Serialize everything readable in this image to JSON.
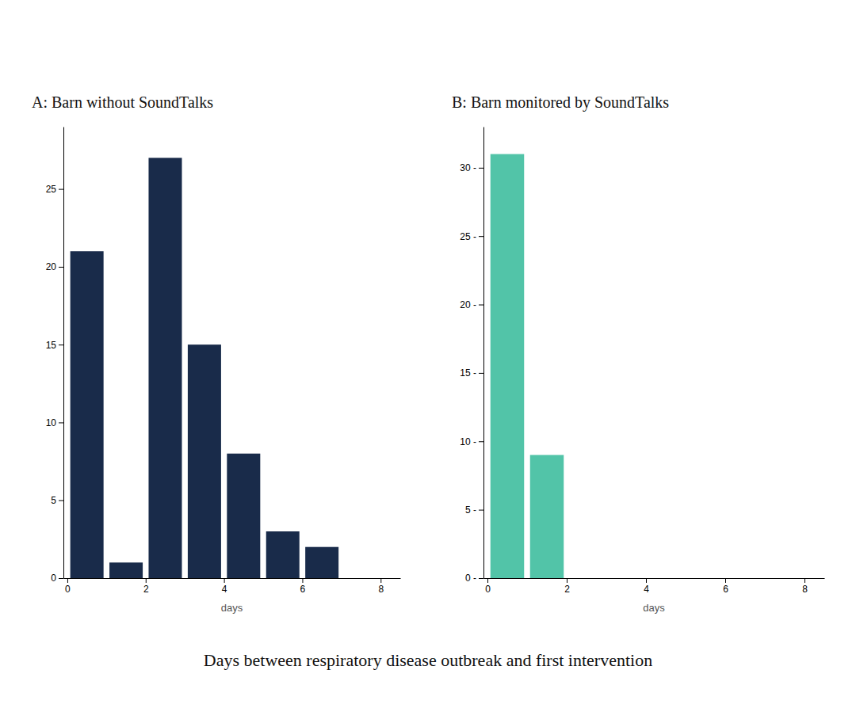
{
  "xlabel": "Days between respiratory disease outbreak and first intervention",
  "chart_data": [
    {
      "type": "histogram",
      "title": "A: Barn without SoundTalks",
      "xlabel": "days",
      "bins": [
        0,
        1,
        2,
        3,
        4,
        5,
        6,
        7
      ],
      "values": [
        21,
        1,
        27,
        15,
        8,
        3,
        2
      ],
      "color": "#192b4a",
      "xlim": [
        -0.1,
        8.5
      ],
      "ylim": [
        0,
        29
      ],
      "xticks": [
        0,
        2,
        4,
        6,
        8
      ],
      "yticks": [
        0,
        5,
        10,
        15,
        20,
        25
      ],
      "grid": false
    },
    {
      "type": "histogram",
      "title": "B: Barn monitored by SoundTalks",
      "xlabel": "days",
      "bins": [
        0,
        1,
        2
      ],
      "values": [
        31,
        9
      ],
      "color": "#52c4a8",
      "xlim": [
        -0.1,
        8.5
      ],
      "ylim": [
        0,
        33
      ],
      "xticks": [
        0,
        2,
        4,
        6,
        8
      ],
      "yticks": [
        {
          "value": 0,
          "label": "0 -"
        },
        {
          "value": 5,
          "label": "5 -"
        },
        {
          "value": 10,
          "label": "10 -"
        },
        {
          "value": 15,
          "label": "15 -"
        },
        {
          "value": 20,
          "label": "20 -"
        },
        {
          "value": 25,
          "label": "25 -"
        },
        {
          "value": 30,
          "label": "30 -"
        }
      ],
      "grid": false
    }
  ]
}
